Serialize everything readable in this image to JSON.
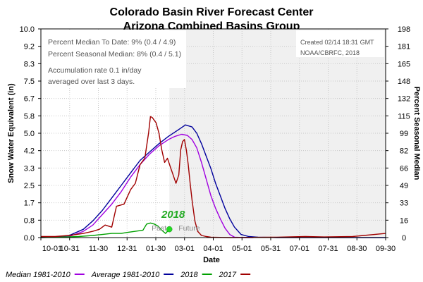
{
  "chart_data": {
    "type": "line",
    "title": "Colorado Basin River Forecast Center",
    "subtitle": "Arizona Combined Basins Group",
    "xlabel": "Date",
    "ylabel": "Snow Water Equivalent (in)",
    "y2label": "Percent Seasonal Median",
    "x_ticks": [
      "10-01",
      "10-31",
      "11-30",
      "12-31",
      "01-30",
      "03-01",
      "04-01",
      "05-01",
      "05-31",
      "07-01",
      "07-31",
      "08-30",
      "09-30"
    ],
    "y_ticks": [
      "0.0",
      "0.8",
      "1.7",
      "2.5",
      "3.3",
      "4.2",
      "5.0",
      "5.8",
      "6.7",
      "7.5",
      "8.3",
      "9.2",
      "10.0"
    ],
    "y2_ticks": [
      "0",
      "16",
      "33",
      "49",
      "66",
      "82",
      "99",
      "115",
      "132",
      "148",
      "165",
      "181",
      "198"
    ],
    "ylim": [
      0,
      10
    ],
    "y2lim": [
      0,
      198
    ],
    "xlim_days": [
      0,
      365
    ],
    "today_day": 136,
    "past_label": "Past",
    "future_label": "Future",
    "annotations": {
      "line1": "Percent Median To Date: 9% (0.4 / 4.9)",
      "line2": "Percent Seasonal Median: 8% (0.4 / 5.1)",
      "line3": "Accumulation rate 0.1 in/day",
      "line4": "averaged over last 3 days.",
      "created": "Created 02/14 18:31 GMT",
      "source": "NOAA/CBRFC, 2018"
    },
    "highlight_label": "2018",
    "legend": [
      {
        "name": "Median 1981-2010",
        "color": "#a000e0"
      },
      {
        "name": "Average 1981-2010",
        "color": "#00009c"
      },
      {
        "name": "2018",
        "color": "#00a000"
      },
      {
        "name": "2017",
        "color": "#a00000"
      }
    ],
    "series": [
      {
        "name": "Median 1981-2010",
        "color": "#a000e0",
        "x": [
          0,
          30,
          45,
          55,
          65,
          75,
          85,
          95,
          105,
          115,
          125,
          135,
          142,
          149,
          155,
          160,
          165,
          170,
          175,
          180,
          185,
          190,
          195,
          200,
          205,
          215,
          225
        ],
        "y": [
          0,
          0.05,
          0.3,
          0.6,
          1.1,
          1.6,
          2.2,
          2.9,
          3.5,
          4.0,
          4.4,
          4.7,
          4.85,
          4.95,
          4.9,
          4.7,
          4.3,
          3.6,
          2.8,
          2.0,
          1.4,
          0.9,
          0.45,
          0.15,
          0.02,
          0,
          0
        ]
      },
      {
        "name": "Average 1981-2010",
        "color": "#00009c",
        "x": [
          0,
          20,
          30,
          45,
          55,
          65,
          75,
          85,
          95,
          105,
          115,
          125,
          135,
          145,
          153,
          160,
          165,
          170,
          175,
          180,
          185,
          190,
          195,
          200,
          205,
          212,
          220,
          230,
          250,
          365
        ],
        "y": [
          0.02,
          0.05,
          0.1,
          0.4,
          0.8,
          1.3,
          1.9,
          2.5,
          3.1,
          3.7,
          4.1,
          4.5,
          4.85,
          5.15,
          5.4,
          5.3,
          5.0,
          4.5,
          3.9,
          3.3,
          2.6,
          2.0,
          1.4,
          0.9,
          0.5,
          0.15,
          0.05,
          0.02,
          0.0,
          0.0
        ]
      },
      {
        "name": "2018",
        "color": "#00a000",
        "x": [
          0,
          20,
          40,
          55,
          65,
          75,
          85,
          92,
          100,
          108,
          112,
          116,
          120,
          124,
          128,
          132,
          136
        ],
        "y": [
          0.0,
          0.02,
          0.05,
          0.1,
          0.15,
          0.2,
          0.2,
          0.25,
          0.3,
          0.35,
          0.65,
          0.7,
          0.65,
          0.55,
          0.35,
          0.2,
          0.4
        ]
      },
      {
        "name": "2017",
        "color": "#a00000",
        "x": [
          0,
          15,
          30,
          45,
          55,
          62,
          68,
          75,
          80,
          88,
          95,
          100,
          105,
          110,
          114,
          116,
          118,
          122,
          125,
          128,
          131,
          134,
          137,
          140,
          143,
          146,
          148,
          150,
          152,
          154,
          156,
          158,
          160,
          163,
          166,
          170,
          175,
          180,
          200,
          250,
          280,
          300,
          330,
          365
        ],
        "y": [
          0.05,
          0.05,
          0.1,
          0.2,
          0.3,
          0.4,
          0.6,
          0.5,
          1.5,
          1.6,
          2.3,
          2.6,
          3.5,
          3.8,
          5.0,
          5.8,
          5.75,
          5.5,
          5.0,
          4.2,
          3.6,
          3.8,
          3.4,
          3.0,
          2.6,
          3.0,
          4.2,
          4.6,
          4.7,
          4.2,
          3.5,
          2.6,
          1.8,
          0.8,
          0.3,
          0.1,
          0.05,
          0.02,
          0.0,
          0.02,
          0.05,
          0.03,
          0.05,
          0.2
        ]
      }
    ]
  }
}
